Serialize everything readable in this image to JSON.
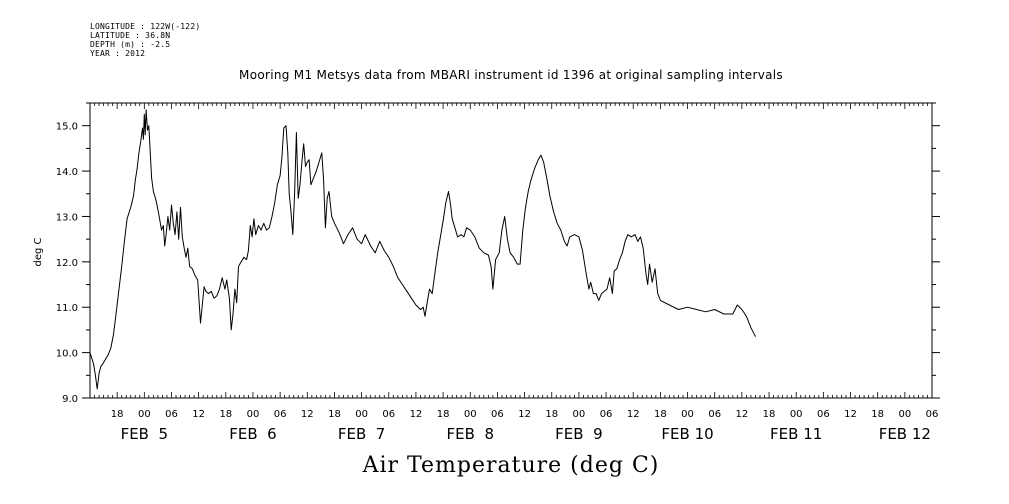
{
  "meta": {
    "longitude": "LONGITUDE : 122W(-122)",
    "latitude": "LATITUDE : 36.8N",
    "depth": "DEPTH (m) : -2.5",
    "year": "YEAR : 2012"
  },
  "chart_data": {
    "type": "line",
    "title": "Mooring M1 Metsys data from MBARI instrument id 1396 at original sampling intervals",
    "xlabel": "Air Temperature (deg C)",
    "ylabel": "deg C",
    "ylim": [
      9.0,
      15.5
    ],
    "yticks": [
      "9.0",
      "10.0",
      "11.0",
      "12.0",
      "13.0",
      "14.0",
      "15.0"
    ],
    "xlim_hours": [
      -12,
      174
    ],
    "hour_ticks": [
      {
        "h": -6,
        "label": "18"
      },
      {
        "h": 0,
        "label": "00"
      },
      {
        "h": 6,
        "label": "06"
      },
      {
        "h": 12,
        "label": "12"
      },
      {
        "h": 18,
        "label": "18"
      },
      {
        "h": 24,
        "label": "00"
      },
      {
        "h": 30,
        "label": "06"
      },
      {
        "h": 36,
        "label": "12"
      },
      {
        "h": 42,
        "label": "18"
      },
      {
        "h": 48,
        "label": "00"
      },
      {
        "h": 54,
        "label": "06"
      },
      {
        "h": 60,
        "label": "12"
      },
      {
        "h": 66,
        "label": "18"
      },
      {
        "h": 72,
        "label": "00"
      },
      {
        "h": 78,
        "label": "06"
      },
      {
        "h": 84,
        "label": "12"
      },
      {
        "h": 90,
        "label": "18"
      },
      {
        "h": 96,
        "label": "00"
      },
      {
        "h": 102,
        "label": "06"
      },
      {
        "h": 108,
        "label": "12"
      },
      {
        "h": 114,
        "label": "18"
      },
      {
        "h": 120,
        "label": "00"
      },
      {
        "h": 126,
        "label": "06"
      },
      {
        "h": 132,
        "label": "12"
      },
      {
        "h": 138,
        "label": "18"
      },
      {
        "h": 144,
        "label": "00"
      },
      {
        "h": 150,
        "label": "06"
      },
      {
        "h": 156,
        "label": "12"
      },
      {
        "h": 162,
        "label": "18"
      },
      {
        "h": 168,
        "label": "00"
      },
      {
        "h": 174,
        "label": "06"
      }
    ],
    "day_labels": [
      {
        "h": 0,
        "label": "FEB  5"
      },
      {
        "h": 24,
        "label": "FEB  6"
      },
      {
        "h": 48,
        "label": "FEB  7"
      },
      {
        "h": 72,
        "label": "FEB  8"
      },
      {
        "h": 96,
        "label": "FEB  9"
      },
      {
        "h": 120,
        "label": "FEB 10"
      },
      {
        "h": 144,
        "label": "FEB 11"
      },
      {
        "h": 168,
        "label": "FEB 12"
      }
    ],
    "series": [
      {
        "color": "#000000",
        "points": [
          [
            -12.0,
            10.0
          ],
          [
            -11.2,
            9.75
          ],
          [
            -10.8,
            9.5
          ],
          [
            -10.4,
            9.2
          ],
          [
            -10.0,
            9.55
          ],
          [
            -9.6,
            9.7
          ],
          [
            -9.2,
            9.75
          ],
          [
            -8.6,
            9.85
          ],
          [
            -8.0,
            9.95
          ],
          [
            -7.4,
            10.1
          ],
          [
            -6.8,
            10.4
          ],
          [
            -6.2,
            10.9
          ],
          [
            -5.6,
            11.4
          ],
          [
            -5.0,
            11.9
          ],
          [
            -4.4,
            12.45
          ],
          [
            -3.8,
            12.95
          ],
          [
            -3.0,
            13.2
          ],
          [
            -2.4,
            13.45
          ],
          [
            -2.0,
            13.8
          ],
          [
            -1.6,
            14.05
          ],
          [
            -1.2,
            14.4
          ],
          [
            -0.8,
            14.65
          ],
          [
            -0.4,
            14.95
          ],
          [
            -0.2,
            14.7
          ],
          [
            0.0,
            15.25
          ],
          [
            0.2,
            14.8
          ],
          [
            0.4,
            15.35
          ],
          [
            0.7,
            14.9
          ],
          [
            1.0,
            15.0
          ],
          [
            1.2,
            14.6
          ],
          [
            1.6,
            13.85
          ],
          [
            2.0,
            13.55
          ],
          [
            2.6,
            13.35
          ],
          [
            3.2,
            13.05
          ],
          [
            3.8,
            12.7
          ],
          [
            4.2,
            12.8
          ],
          [
            4.5,
            12.35
          ],
          [
            4.8,
            12.6
          ],
          [
            5.2,
            13.0
          ],
          [
            5.6,
            12.7
          ],
          [
            6.0,
            13.25
          ],
          [
            6.4,
            12.85
          ],
          [
            6.8,
            12.6
          ],
          [
            7.2,
            13.1
          ],
          [
            7.6,
            12.5
          ],
          [
            8.0,
            13.2
          ],
          [
            8.4,
            12.55
          ],
          [
            8.8,
            12.3
          ],
          [
            9.2,
            12.1
          ],
          [
            9.6,
            12.3
          ],
          [
            10.0,
            11.9
          ],
          [
            10.6,
            11.85
          ],
          [
            11.2,
            11.7
          ],
          [
            11.8,
            11.6
          ],
          [
            12.4,
            10.65
          ],
          [
            12.8,
            11.05
          ],
          [
            13.2,
            11.45
          ],
          [
            13.6,
            11.35
          ],
          [
            14.2,
            11.3
          ],
          [
            14.8,
            11.35
          ],
          [
            15.4,
            11.2
          ],
          [
            16.0,
            11.25
          ],
          [
            16.6,
            11.4
          ],
          [
            17.2,
            11.65
          ],
          [
            17.8,
            11.4
          ],
          [
            18.2,
            11.6
          ],
          [
            18.8,
            11.2
          ],
          [
            19.2,
            10.5
          ],
          [
            19.6,
            10.85
          ],
          [
            20.0,
            11.4
          ],
          [
            20.4,
            11.1
          ],
          [
            20.8,
            11.9
          ],
          [
            21.4,
            12.0
          ],
          [
            22.0,
            12.1
          ],
          [
            22.6,
            12.05
          ],
          [
            23.0,
            12.25
          ],
          [
            23.4,
            12.8
          ],
          [
            23.8,
            12.55
          ],
          [
            24.2,
            12.95
          ],
          [
            24.6,
            12.6
          ],
          [
            25.2,
            12.8
          ],
          [
            25.8,
            12.7
          ],
          [
            26.4,
            12.85
          ],
          [
            27.0,
            12.7
          ],
          [
            27.6,
            12.75
          ],
          [
            28.2,
            13.0
          ],
          [
            28.8,
            13.3
          ],
          [
            29.4,
            13.7
          ],
          [
            30.0,
            13.9
          ],
          [
            30.4,
            14.3
          ],
          [
            30.8,
            14.95
          ],
          [
            31.3,
            15.0
          ],
          [
            31.7,
            14.4
          ],
          [
            32.0,
            13.5
          ],
          [
            32.4,
            13.1
          ],
          [
            32.8,
            12.6
          ],
          [
            33.2,
            13.5
          ],
          [
            33.6,
            14.85
          ],
          [
            34.0,
            13.4
          ],
          [
            34.4,
            13.7
          ],
          [
            34.8,
            14.2
          ],
          [
            35.2,
            14.6
          ],
          [
            35.6,
            14.1
          ],
          [
            36.0,
            14.2
          ],
          [
            36.4,
            14.25
          ],
          [
            36.8,
            13.7
          ],
          [
            38.0,
            14.0
          ],
          [
            39.2,
            14.4
          ],
          [
            39.6,
            13.8
          ],
          [
            40.0,
            12.75
          ],
          [
            40.4,
            13.4
          ],
          [
            40.8,
            13.55
          ],
          [
            41.4,
            13.0
          ],
          [
            42.0,
            12.85
          ],
          [
            43.0,
            12.65
          ],
          [
            44.0,
            12.4
          ],
          [
            45.0,
            12.6
          ],
          [
            46.0,
            12.75
          ],
          [
            47.0,
            12.5
          ],
          [
            48.0,
            12.4
          ],
          [
            48.8,
            12.6
          ],
          [
            50.0,
            12.35
          ],
          [
            51.0,
            12.2
          ],
          [
            52.0,
            12.45
          ],
          [
            53.0,
            12.25
          ],
          [
            54.0,
            12.1
          ],
          [
            55.0,
            11.9
          ],
          [
            56.0,
            11.65
          ],
          [
            57.0,
            11.5
          ],
          [
            58.0,
            11.35
          ],
          [
            59.0,
            11.2
          ],
          [
            60.0,
            11.05
          ],
          [
            61.0,
            10.95
          ],
          [
            61.6,
            11.0
          ],
          [
            62.0,
            10.8
          ],
          [
            62.4,
            11.05
          ],
          [
            63.0,
            11.4
          ],
          [
            63.6,
            11.3
          ],
          [
            64.2,
            11.75
          ],
          [
            64.8,
            12.2
          ],
          [
            65.4,
            12.55
          ],
          [
            66.0,
            12.9
          ],
          [
            66.6,
            13.3
          ],
          [
            67.2,
            13.55
          ],
          [
            67.6,
            13.3
          ],
          [
            68.0,
            12.95
          ],
          [
            68.6,
            12.75
          ],
          [
            69.2,
            12.55
          ],
          [
            70.0,
            12.6
          ],
          [
            70.6,
            12.55
          ],
          [
            71.2,
            12.75
          ],
          [
            72.0,
            12.7
          ],
          [
            73.0,
            12.55
          ],
          [
            74.0,
            12.3
          ],
          [
            75.0,
            12.2
          ],
          [
            76.0,
            12.15
          ],
          [
            76.6,
            11.9
          ],
          [
            77.0,
            11.4
          ],
          [
            77.6,
            12.05
          ],
          [
            78.4,
            12.2
          ],
          [
            79.0,
            12.7
          ],
          [
            79.6,
            13.0
          ],
          [
            80.2,
            12.5
          ],
          [
            80.8,
            12.2
          ],
          [
            81.6,
            12.1
          ],
          [
            82.4,
            11.95
          ],
          [
            83.0,
            11.95
          ],
          [
            83.6,
            12.7
          ],
          [
            84.2,
            13.2
          ],
          [
            84.8,
            13.55
          ],
          [
            85.4,
            13.8
          ],
          [
            86.2,
            14.05
          ],
          [
            87.0,
            14.25
          ],
          [
            87.6,
            14.35
          ],
          [
            88.2,
            14.2
          ],
          [
            88.8,
            13.9
          ],
          [
            89.6,
            13.45
          ],
          [
            90.4,
            13.1
          ],
          [
            91.2,
            12.85
          ],
          [
            92.0,
            12.7
          ],
          [
            92.8,
            12.45
          ],
          [
            93.4,
            12.35
          ],
          [
            94.0,
            12.55
          ],
          [
            95.0,
            12.6
          ],
          [
            96.0,
            12.55
          ],
          [
            96.8,
            12.25
          ],
          [
            97.6,
            11.75
          ],
          [
            98.2,
            11.4
          ],
          [
            98.6,
            11.55
          ],
          [
            99.2,
            11.3
          ],
          [
            99.8,
            11.3
          ],
          [
            100.4,
            11.15
          ],
          [
            101.0,
            11.3
          ],
          [
            101.6,
            11.35
          ],
          [
            102.2,
            11.4
          ],
          [
            102.8,
            11.65
          ],
          [
            103.4,
            11.3
          ],
          [
            103.8,
            11.8
          ],
          [
            104.4,
            11.85
          ],
          [
            105.0,
            12.05
          ],
          [
            105.6,
            12.2
          ],
          [
            106.2,
            12.45
          ],
          [
            106.8,
            12.6
          ],
          [
            107.6,
            12.55
          ],
          [
            108.4,
            12.6
          ],
          [
            109.0,
            12.45
          ],
          [
            109.6,
            12.55
          ],
          [
            110.2,
            12.3
          ],
          [
            110.8,
            11.75
          ],
          [
            111.2,
            11.5
          ],
          [
            111.6,
            11.95
          ],
          [
            112.2,
            11.55
          ],
          [
            112.8,
            11.85
          ],
          [
            113.4,
            11.3
          ],
          [
            114.0,
            11.15
          ],
          [
            116.0,
            11.05
          ],
          [
            118.0,
            10.95
          ],
          [
            120.0,
            11.0
          ],
          [
            122.0,
            10.95
          ],
          [
            124.0,
            10.9
          ],
          [
            126.0,
            10.95
          ],
          [
            128.0,
            10.85
          ],
          [
            130.0,
            10.85
          ],
          [
            131.0,
            11.05
          ],
          [
            132.0,
            10.95
          ],
          [
            133.0,
            10.8
          ],
          [
            134.0,
            10.55
          ],
          [
            135.0,
            10.35
          ]
        ]
      }
    ]
  }
}
